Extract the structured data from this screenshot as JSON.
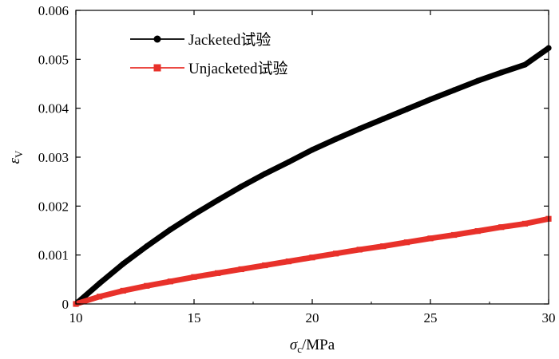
{
  "chart_data": {
    "type": "line",
    "title": "",
    "xlabel_symbol": "σ",
    "xlabel_sub": "c",
    "xlabel_unit": "/MPa",
    "ylabel_symbol": "ε",
    "ylabel_sub": "V",
    "xlim": [
      10,
      30
    ],
    "ylim": [
      0,
      0.006
    ],
    "xticks": [
      10,
      15,
      20,
      25,
      30
    ],
    "xtick_labels": [
      "10",
      "15",
      "20",
      "25",
      "30"
    ],
    "yticks": [
      0,
      0.001,
      0.002,
      0.003,
      0.004,
      0.005,
      0.006
    ],
    "ytick_labels": [
      "0",
      "0.001",
      "0.002",
      "0.003",
      "0.004",
      "0.005",
      "0.006"
    ],
    "grid": false,
    "legend_position": "top-left",
    "series": [
      {
        "name": "Jacketed试验",
        "color": "#000000",
        "marker": "circle",
        "x": [
          10,
          11,
          12,
          13,
          14,
          15,
          16,
          17,
          18,
          19,
          20,
          21,
          22,
          23,
          24,
          25,
          26,
          27,
          28,
          29,
          30
        ],
        "y": [
          0,
          0.00042,
          0.00082,
          0.00118,
          0.00152,
          0.00183,
          0.00212,
          0.0024,
          0.00266,
          0.0029,
          0.00315,
          0.00337,
          0.00358,
          0.00378,
          0.00398,
          0.00418,
          0.00437,
          0.00456,
          0.00473,
          0.00489,
          0.00523
        ]
      },
      {
        "name": "Unjacketed试验",
        "color": "#e8312a",
        "marker": "square",
        "x": [
          10,
          11,
          12,
          13,
          14,
          15,
          16,
          17,
          18,
          19,
          20,
          21,
          22,
          23,
          24,
          25,
          26,
          27,
          28,
          29,
          30
        ],
        "y": [
          0,
          0.00015,
          0.00027,
          0.00037,
          0.00046,
          0.00055,
          0.00063,
          0.00071,
          0.00079,
          0.00087,
          0.00095,
          0.00103,
          0.00111,
          0.00118,
          0.00126,
          0.00134,
          0.00141,
          0.00149,
          0.00157,
          0.00164,
          0.00174
        ]
      }
    ]
  }
}
